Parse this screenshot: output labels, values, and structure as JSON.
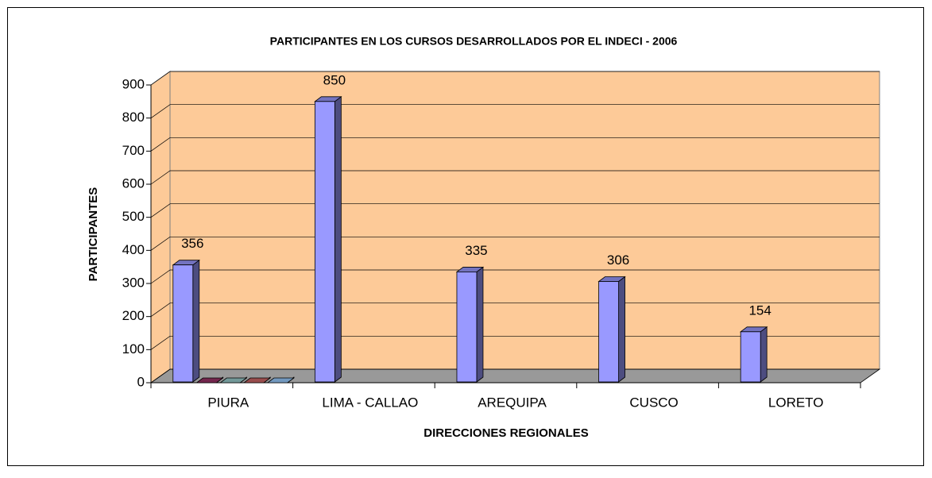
{
  "chart_data": {
    "type": "bar3d",
    "title": "PARTICIPANTES EN LOS CURSOS DESARROLLADOS POR EL INDECI - 2006",
    "x_label": "DIRECCIONES REGIONALES",
    "y_label": "PARTICIPANTES",
    "categories": [
      "PIURA",
      "LIMA - CALLAO",
      "AREQUIPA",
      "CUSCO",
      "LORETO"
    ],
    "series": [
      {
        "color": "#9999ff",
        "values": [
          356,
          850,
          335,
          306,
          154
        ],
        "show_labels": true
      },
      {
        "color": "#993366",
        "values": [
          0,
          null,
          null,
          null,
          null
        ]
      },
      {
        "color": "#99cccc",
        "values": [
          0,
          null,
          null,
          null,
          null
        ]
      },
      {
        "color": "#cc6666",
        "values": [
          0,
          null,
          null,
          null,
          null
        ]
      },
      {
        "color": "#99ccff",
        "values": [
          0,
          null,
          null,
          null,
          null
        ]
      }
    ],
    "ylim": [
      0,
      900
    ],
    "yticks": [
      0,
      100,
      200,
      300,
      400,
      500,
      600,
      700,
      800,
      900
    ],
    "grid": true,
    "wall_color": "#fdca98",
    "floor_color": "#999999"
  }
}
